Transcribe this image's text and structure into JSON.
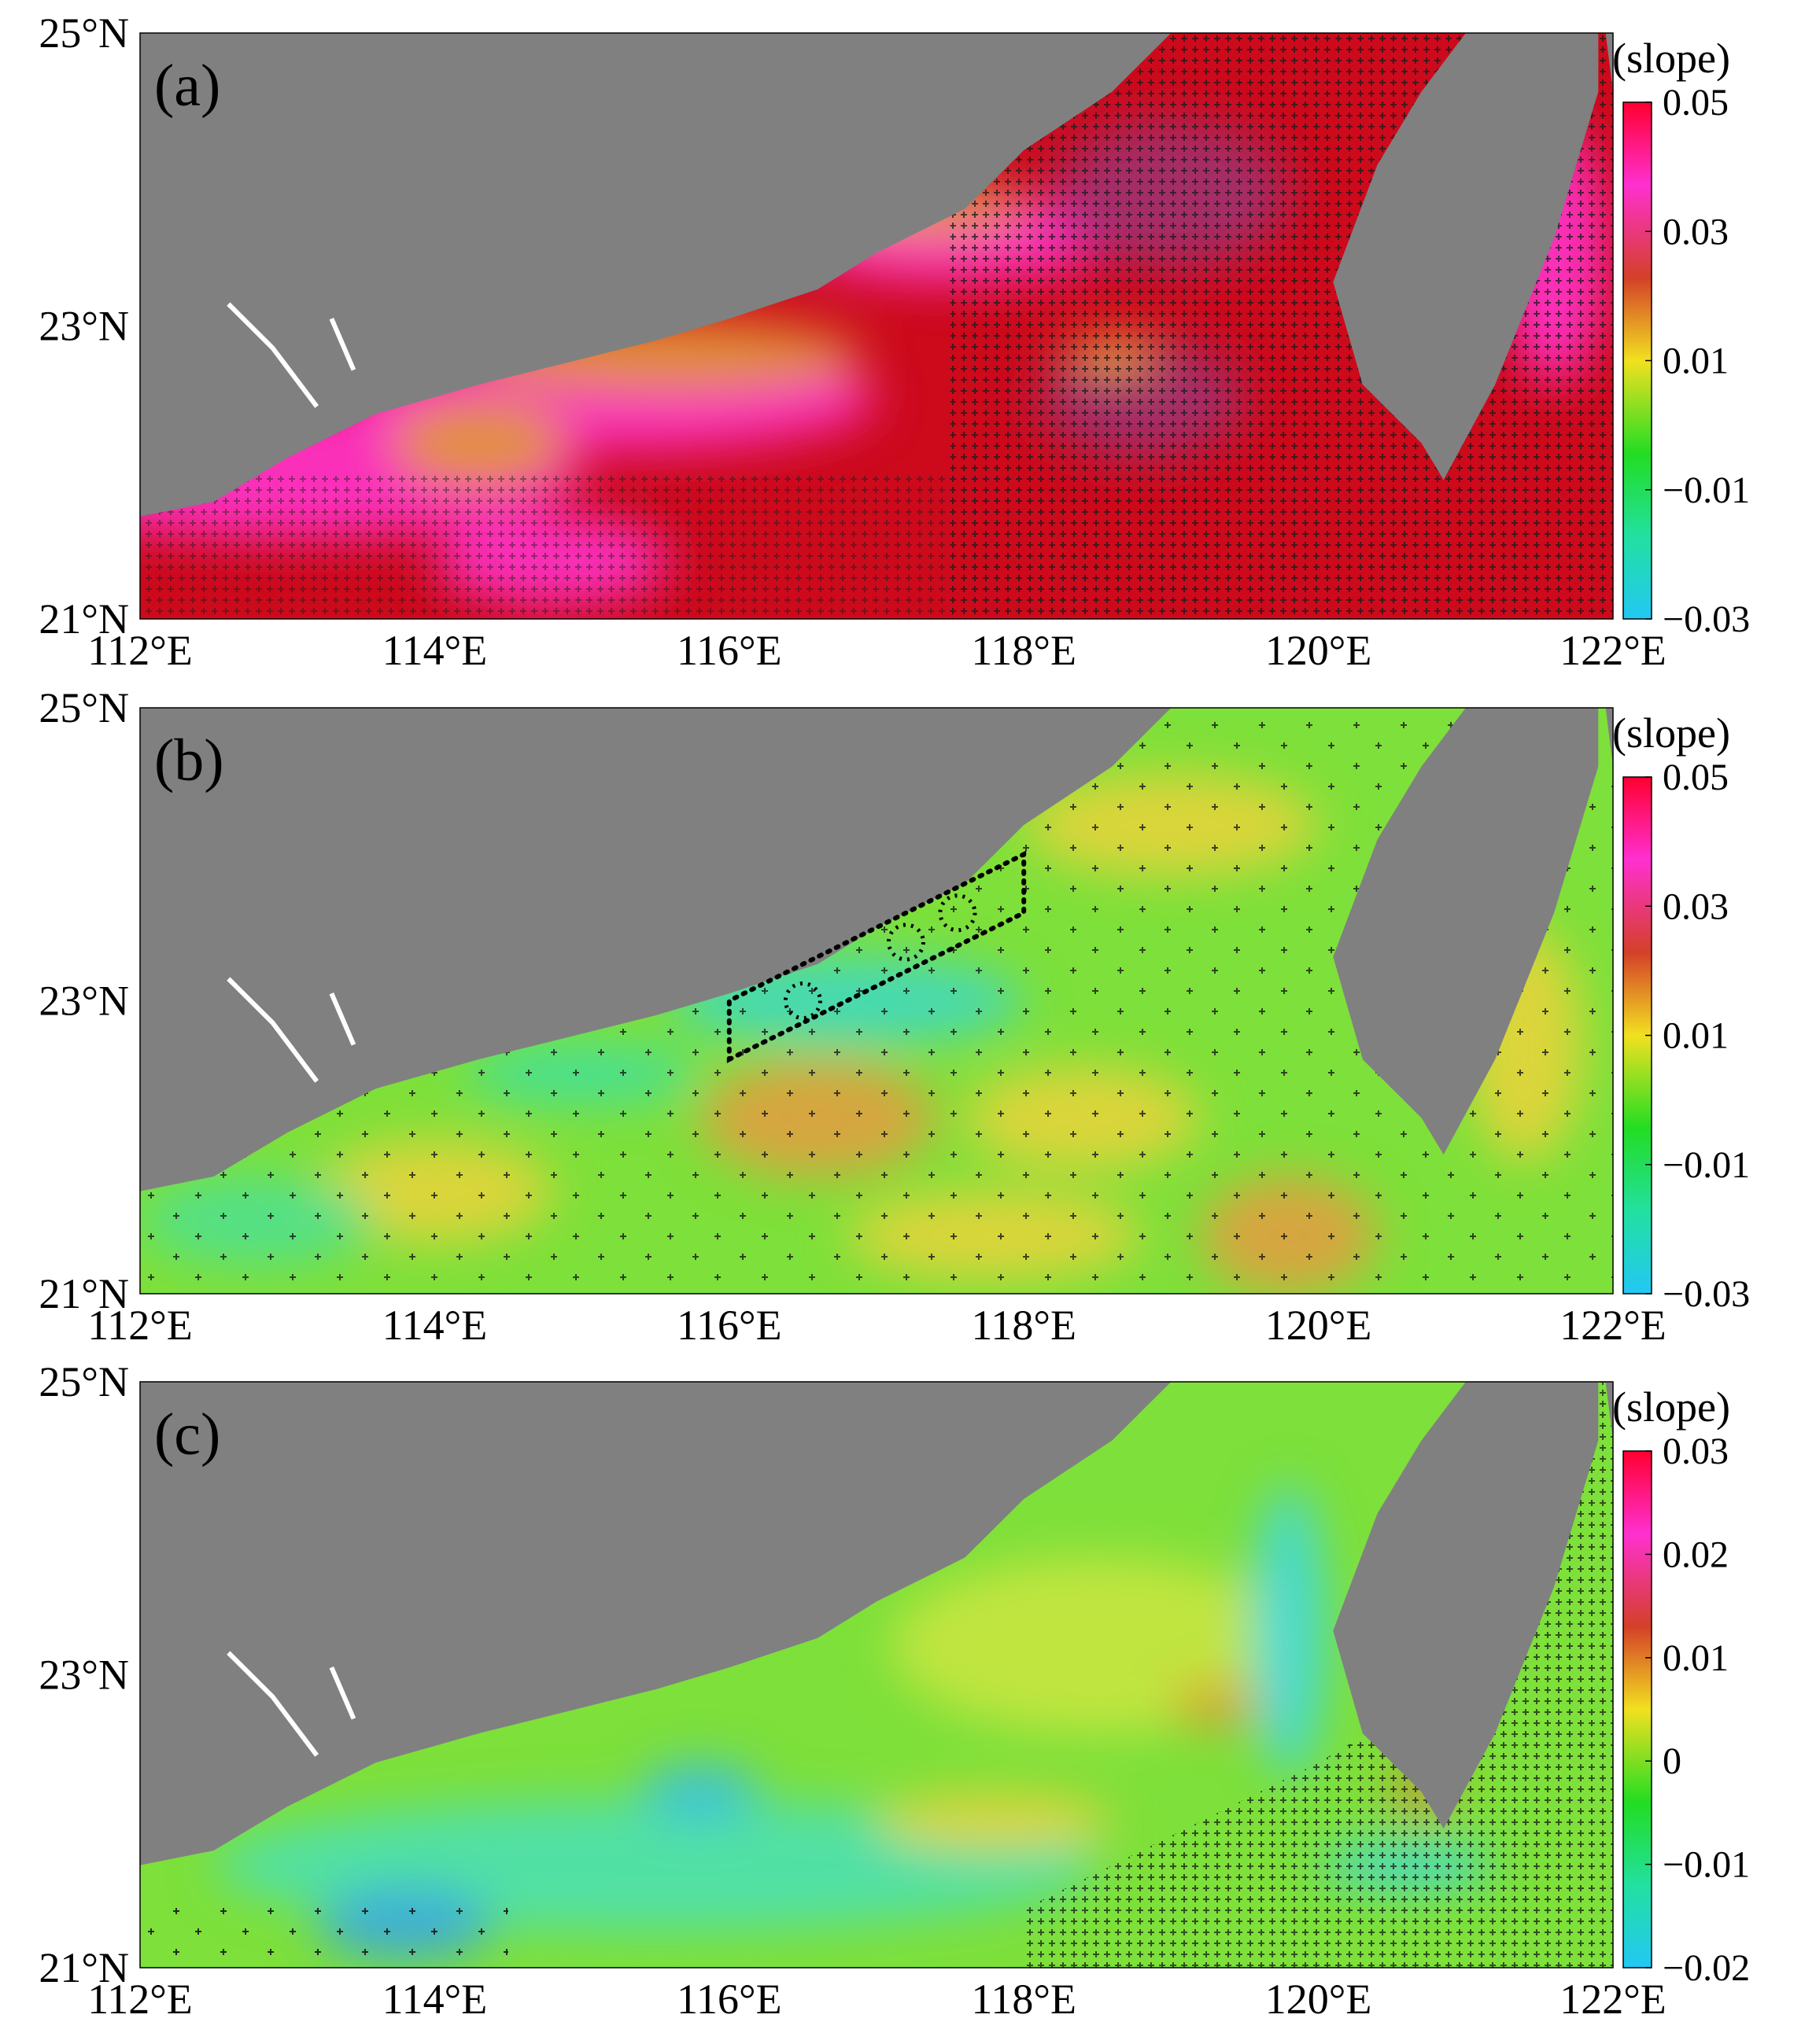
{
  "figure": {
    "panels": [
      {
        "id": "a",
        "label": "(a)",
        "colorbar": {
          "title": "(slope)",
          "ticks": [
            "0.05",
            "0.03",
            "0.01",
            "−0.01",
            "−0.03"
          ]
        },
        "y_ticks": [
          "25°N",
          "23°N",
          "21°N"
        ],
        "x_ticks": [
          "112°E",
          "114°E",
          "116°E",
          "118°E",
          "120°E",
          "122°E"
        ],
        "base_color": "#cc0a1c",
        "blobs": [
          {
            "x": 113,
            "y": 22.0,
            "rx": 2.0,
            "ry": 0.45,
            "c": "#ff33cc"
          },
          {
            "x": 115.2,
            "y": 22.5,
            "rx": 1.8,
            "ry": 0.35,
            "c": "#ff33cc"
          },
          {
            "x": 115.6,
            "y": 22.8,
            "rx": 1.3,
            "ry": 0.25,
            "c": "#e09a30"
          },
          {
            "x": 117.5,
            "y": 23.6,
            "rx": 1.1,
            "ry": 0.3,
            "c": "#ff33cc"
          },
          {
            "x": 117.3,
            "y": 23.8,
            "rx": 0.7,
            "ry": 0.2,
            "c": "#e0a040"
          },
          {
            "x": 114.3,
            "y": 22.2,
            "rx": 0.6,
            "ry": 0.3,
            "c": "#e09a30"
          },
          {
            "x": 119.0,
            "y": 23.9,
            "rx": 0.8,
            "ry": 0.5,
            "c": "#a03070"
          },
          {
            "x": 118.8,
            "y": 22.5,
            "rx": 0.7,
            "ry": 0.4,
            "c": "#a03070"
          },
          {
            "x": 121.6,
            "y": 23.5,
            "rx": 0.35,
            "ry": 0.9,
            "c": "#ff33cc"
          },
          {
            "x": 114.8,
            "y": 21.4,
            "rx": 0.8,
            "ry": 0.3,
            "c": "#ff33cc"
          },
          {
            "x": 118.6,
            "y": 22.8,
            "rx": 0.3,
            "ry": 0.1,
            "c": "#f2c832"
          }
        ],
        "pattern": "dense"
      },
      {
        "id": "b",
        "label": "(b)",
        "colorbar": {
          "title": "(slope)",
          "ticks": [
            "0.05",
            "0.03",
            "0.01",
            "−0.01",
            "−0.03"
          ]
        },
        "y_ticks": [
          "25°N",
          "23°N",
          "21°N"
        ],
        "x_ticks": [
          "112°E",
          "114°E",
          "116°E",
          "118°E",
          "120°E",
          "122°E"
        ],
        "base_color": "#7ee03a",
        "blobs": [
          {
            "x": 114.0,
            "y": 21.7,
            "rx": 0.8,
            "ry": 0.35,
            "c": "#e6d43a"
          },
          {
            "x": 116.6,
            "y": 22.2,
            "rx": 0.8,
            "ry": 0.4,
            "c": "#e0a040"
          },
          {
            "x": 118.4,
            "y": 22.2,
            "rx": 0.8,
            "ry": 0.35,
            "c": "#e6d43a"
          },
          {
            "x": 119.8,
            "y": 21.4,
            "rx": 0.6,
            "ry": 0.4,
            "c": "#e0a040"
          },
          {
            "x": 115.0,
            "y": 22.5,
            "rx": 0.8,
            "ry": 0.2,
            "c": "#40e0a0"
          },
          {
            "x": 116.8,
            "y": 23.0,
            "rx": 1.2,
            "ry": 0.3,
            "c": "#40d8c0"
          },
          {
            "x": 112.8,
            "y": 21.5,
            "rx": 0.8,
            "ry": 0.3,
            "c": "#50e090"
          },
          {
            "x": 119.0,
            "y": 24.2,
            "rx": 1.0,
            "ry": 0.35,
            "c": "#e6d43a"
          },
          {
            "x": 121.4,
            "y": 22.7,
            "rx": 0.4,
            "ry": 0.8,
            "c": "#e6d43a"
          },
          {
            "x": 117.8,
            "y": 21.4,
            "rx": 1.0,
            "ry": 0.3,
            "c": "#e6d43a"
          }
        ],
        "pattern": "sparse",
        "box": {
          "lon": [
            116.0,
            118.0,
            118.0,
            116.0
          ],
          "lat": [
            22.6,
            23.6,
            24.0,
            23.0
          ]
        }
      },
      {
        "id": "c",
        "label": "(c)",
        "colorbar": {
          "title": "(slope)",
          "ticks": [
            "0.03",
            "0.02",
            "0.01",
            "0",
            "−0.01",
            "−0.02"
          ]
        },
        "y_ticks": [
          "25°N",
          "23°N",
          "21°N"
        ],
        "x_ticks": [
          "112°E",
          "114°E",
          "116°E",
          "118°E",
          "120°E",
          "122°E"
        ],
        "base_color": "#7ee03a",
        "blobs": [
          {
            "x": 115.5,
            "y": 21.7,
            "rx": 3.0,
            "ry": 0.45,
            "c": "#4ee0b0"
          },
          {
            "x": 113.8,
            "y": 21.3,
            "rx": 0.6,
            "ry": 0.25,
            "c": "#3aa8e0"
          },
          {
            "x": 115.8,
            "y": 22.2,
            "rx": 0.4,
            "ry": 0.2,
            "c": "#3ac0e0"
          },
          {
            "x": 118.5,
            "y": 23.2,
            "rx": 1.4,
            "ry": 0.6,
            "c": "#c8e640"
          },
          {
            "x": 119.3,
            "y": 22.8,
            "rx": 0.3,
            "ry": 0.15,
            "c": "#e09a30"
          },
          {
            "x": 117.8,
            "y": 22.0,
            "rx": 0.8,
            "ry": 0.2,
            "c": "#e6d43a"
          },
          {
            "x": 119.8,
            "y": 23.3,
            "rx": 0.25,
            "ry": 1.0,
            "c": "#40d8e0"
          },
          {
            "x": 120.7,
            "y": 22.2,
            "rx": 0.2,
            "ry": 0.15,
            "c": "#d88030"
          },
          {
            "x": 120.6,
            "y": 21.7,
            "rx": 0.6,
            "ry": 0.15,
            "c": "#40d8e0"
          }
        ],
        "pattern": "southeast"
      }
    ]
  }
}
